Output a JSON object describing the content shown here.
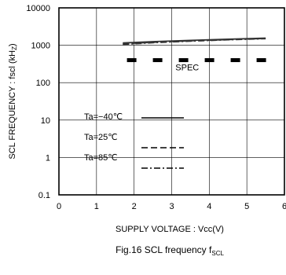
{
  "chart_data": {
    "type": "line",
    "title": "",
    "caption": {
      "main": "Fig.16  SCL frequency  f",
      "sub": "SCL"
    },
    "xlabel": "SUPPLY VOLTAGE : Vcc(V)",
    "ylabel": {
      "main": "SCL FREQUENCY : fscl (kH",
      "sub": "Z",
      "end": ")"
    },
    "x_scale": "linear",
    "y_scale": "log",
    "xlim": [
      0,
      6
    ],
    "ylim": [
      0.1,
      10000
    ],
    "x_ticks": [
      0,
      1,
      2,
      3,
      4,
      5,
      6
    ],
    "x_tick_labels": [
      "0",
      "1",
      "2",
      "3",
      "4",
      "5",
      "6"
    ],
    "y_ticks": [
      0.1,
      1,
      10,
      100,
      1000,
      10000
    ],
    "y_tick_labels": [
      "0.1",
      "1",
      "10",
      "100",
      "1000",
      "10000"
    ],
    "grid": true,
    "series": [
      {
        "name": "Ta=−40℃",
        "style": "solid",
        "x": [
          1.7,
          2.5,
          3.5,
          4.5,
          5.5
        ],
        "y": [
          1150,
          1250,
          1350,
          1450,
          1550
        ]
      },
      {
        "name": "Ta=25℃",
        "style": "dashed",
        "x": [
          1.7,
          2.5,
          3.5,
          4.5,
          5.5
        ],
        "y": [
          1100,
          1200,
          1320,
          1420,
          1520
        ]
      },
      {
        "name": "Ta=85℃",
        "style": "dashdot",
        "x": [
          1.7,
          2.5,
          3.5,
          4.5,
          5.5
        ],
        "y": [
          1050,
          1170,
          1290,
          1400,
          1500
        ]
      },
      {
        "name": "SPEC",
        "style": "spec",
        "x": [
          1.8,
          5.5
        ],
        "y": [
          400,
          400
        ]
      }
    ],
    "spec_label": "SPEC",
    "legend_position": "bottom-left"
  }
}
